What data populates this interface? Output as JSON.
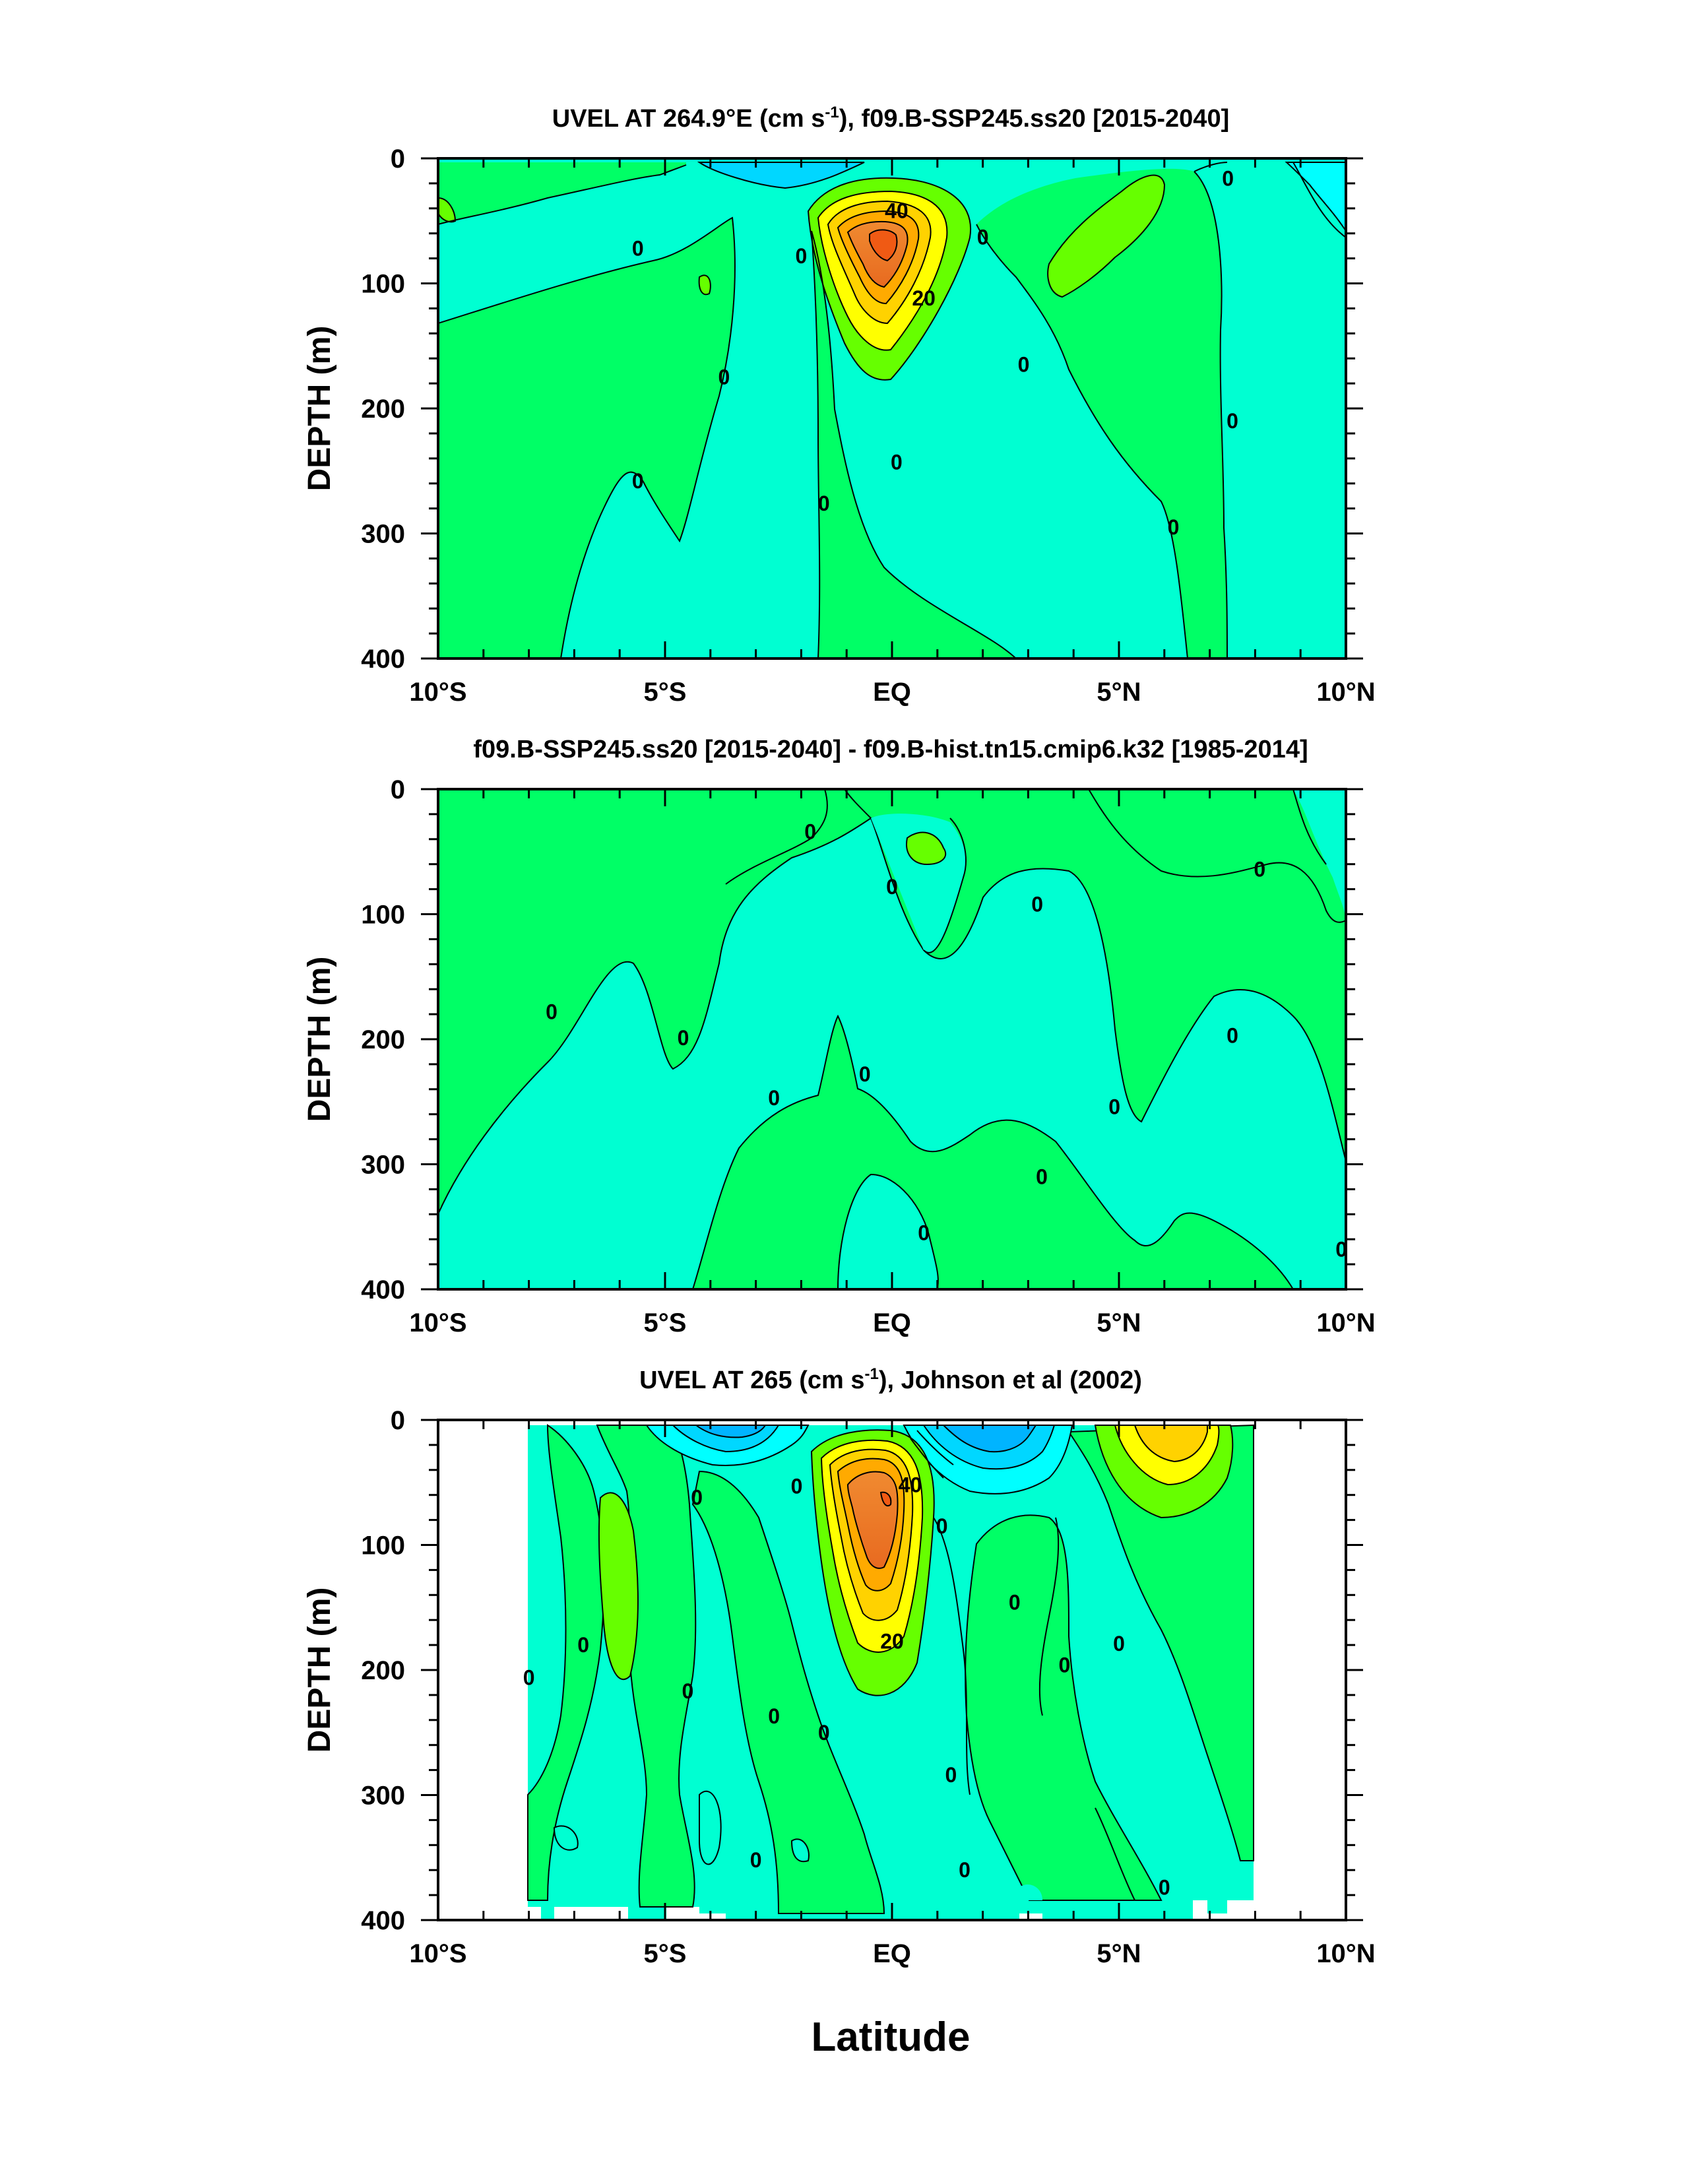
{
  "chart_data": [
    {
      "type": "contour",
      "title": "UVEL AT 264.9°E (cm s⁻¹), f09.B-SSP245.ss20 [2015-2040]",
      "ylabel": "DEPTH (m)",
      "x_ticks": [
        "10°S",
        "5°S",
        "EQ",
        "5°N",
        "10°N"
      ],
      "y_ticks": [
        "0",
        "100",
        "200",
        "300",
        "400"
      ],
      "xlim": [
        -10,
        10
      ],
      "ylim": [
        400,
        0
      ],
      "contour_labels": [
        {
          "text": "0",
          "lat": -5.6,
          "depth": 72
        },
        {
          "text": "0",
          "lat": -3.7,
          "depth": 175
        },
        {
          "text": "0",
          "lat": -5.6,
          "depth": 258
        },
        {
          "text": "0",
          "lat": -1.5,
          "depth": 276
        },
        {
          "text": "0",
          "lat": -2.0,
          "depth": 78
        },
        {
          "text": "0",
          "lat": 0.1,
          "depth": 243
        },
        {
          "text": "0",
          "lat": 2.0,
          "depth": 63
        },
        {
          "text": "0",
          "lat": 2.9,
          "depth": 165
        },
        {
          "text": "0",
          "lat": 6.2,
          "depth": 295
        },
        {
          "text": "0",
          "lat": 7.4,
          "depth": 16
        },
        {
          "text": "0",
          "lat": 7.5,
          "depth": 210
        },
        {
          "text": "40",
          "lat": 0.1,
          "depth": 42
        },
        {
          "text": "20",
          "lat": 0.7,
          "depth": 112
        }
      ]
    },
    {
      "type": "contour",
      "title": "f09.B-SSP245.ss20 [2015-2040] - f09.B-hist.tn15.cmip6.k32 [1985-2014]",
      "ylabel": "DEPTH (m)",
      "x_ticks": [
        "10°S",
        "5°S",
        "EQ",
        "5°N",
        "10°N"
      ],
      "y_ticks": [
        "0",
        "100",
        "200",
        "300",
        "400"
      ],
      "xlim": [
        -10,
        10
      ],
      "ylim": [
        400,
        0
      ],
      "contour_labels": [
        {
          "text": "0",
          "lat": -1.8,
          "depth": 34
        },
        {
          "text": "0",
          "lat": 0.0,
          "depth": 78
        },
        {
          "text": "0",
          "lat": 3.2,
          "depth": 92
        },
        {
          "text": "0",
          "lat": 8.1,
          "depth": 64
        },
        {
          "text": "0",
          "lat": -7.5,
          "depth": 178
        },
        {
          "text": "0",
          "lat": -4.6,
          "depth": 199
        },
        {
          "text": "0",
          "lat": 7.5,
          "depth": 197
        },
        {
          "text": "0",
          "lat": -0.6,
          "depth": 228
        },
        {
          "text": "0",
          "lat": -2.6,
          "depth": 247
        },
        {
          "text": "0",
          "lat": 4.9,
          "depth": 254
        },
        {
          "text": "0",
          "lat": 3.3,
          "depth": 310
        },
        {
          "text": "0",
          "lat": 0.7,
          "depth": 355
        },
        {
          "text": "0",
          "lat": 9.9,
          "depth": 368
        }
      ]
    },
    {
      "type": "contour",
      "title": "UVEL AT 265 (cm s⁻¹), Johnson et al (2002)",
      "ylabel": "DEPTH (m)",
      "xlabel": "Latitude",
      "x_ticks": [
        "10°S",
        "5°S",
        "EQ",
        "5°N",
        "10°N"
      ],
      "y_ticks": [
        "0",
        "100",
        "200",
        "300",
        "400"
      ],
      "xlim": [
        -10,
        10
      ],
      "ylim": [
        400,
        0
      ],
      "data_lat_range": [
        -8,
        8
      ],
      "contour_labels": [
        {
          "text": "0",
          "lat": -4.3,
          "depth": 62
        },
        {
          "text": "0",
          "lat": -2.1,
          "depth": 53
        },
        {
          "text": "0",
          "lat": 1.1,
          "depth": 85
        },
        {
          "text": "0",
          "lat": -6.8,
          "depth": 180
        },
        {
          "text": "0",
          "lat": -8.0,
          "depth": 206
        },
        {
          "text": "0",
          "lat": -4.5,
          "depth": 217
        },
        {
          "text": "0",
          "lat": -2.6,
          "depth": 237
        },
        {
          "text": "0",
          "lat": -1.5,
          "depth": 250
        },
        {
          "text": "0",
          "lat": 2.7,
          "depth": 146
        },
        {
          "text": "0",
          "lat": 3.8,
          "depth": 196
        },
        {
          "text": "0",
          "lat": 5.0,
          "depth": 179
        },
        {
          "text": "0",
          "lat": 1.3,
          "depth": 284
        },
        {
          "text": "0",
          "lat": -3.0,
          "depth": 352
        },
        {
          "text": "0",
          "lat": 1.6,
          "depth": 360
        },
        {
          "text": "0",
          "lat": 6.0,
          "depth": 374
        },
        {
          "text": "40",
          "lat": 0.4,
          "depth": 52
        },
        {
          "text": "20",
          "lat": 0.0,
          "depth": 177
        }
      ]
    }
  ]
}
